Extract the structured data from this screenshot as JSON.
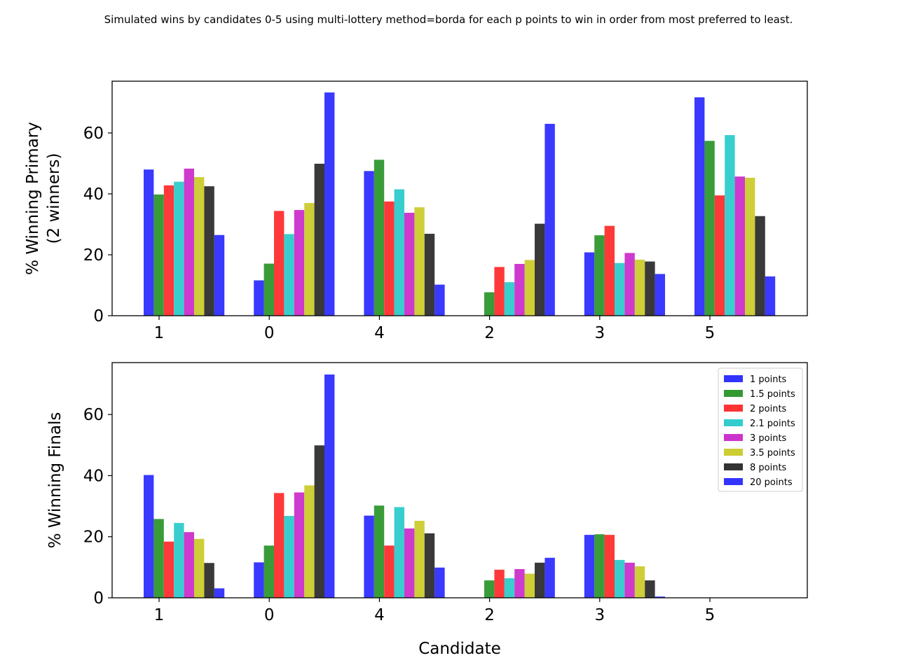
{
  "figure": {
    "title": "Simulated wins by candidates 0-5 using multi-lottery method=borda for each p points to win in order from most preferred to least."
  },
  "series_colors": [
    "#3333ff",
    "#339933",
    "#ff3333",
    "#33cccc",
    "#cc33cc",
    "#cccc33",
    "#333333",
    "#3333ff"
  ],
  "chart_data": [
    {
      "type": "bar",
      "ylabel": "% Winning Primary\n(2 winners)",
      "xlabel": "",
      "ylim": [
        0,
        77
      ],
      "yticks": [
        0,
        20,
        40,
        60
      ],
      "grid": false,
      "categories": [
        "1",
        "0",
        "4",
        "2",
        "3",
        "5"
      ],
      "series": [
        {
          "name": "1 points",
          "values": [
            48.0,
            11.6,
            47.5,
            0.0,
            20.8,
            71.7
          ]
        },
        {
          "name": "1.5 points",
          "values": [
            39.8,
            17.1,
            51.2,
            7.7,
            26.4,
            57.4
          ]
        },
        {
          "name": "2 points",
          "values": [
            42.8,
            34.4,
            37.5,
            16.0,
            29.5,
            39.5
          ]
        },
        {
          "name": "2.1 points",
          "values": [
            44.0,
            26.8,
            41.5,
            11.0,
            17.3,
            59.3
          ]
        },
        {
          "name": "3 points",
          "values": [
            48.3,
            34.7,
            33.8,
            17.0,
            20.6,
            45.7
          ]
        },
        {
          "name": "3.5 points",
          "values": [
            45.5,
            37.0,
            35.6,
            18.3,
            18.4,
            45.3
          ]
        },
        {
          "name": "8 points",
          "values": [
            42.5,
            49.9,
            26.9,
            30.2,
            17.8,
            32.7
          ]
        },
        {
          "name": "20 points",
          "values": [
            26.5,
            73.3,
            10.2,
            63.0,
            13.7,
            12.9
          ]
        }
      ]
    },
    {
      "type": "bar",
      "ylabel": "% Winning Finals",
      "xlabel": "Candidate",
      "ylim": [
        0,
        77
      ],
      "yticks": [
        0,
        20,
        40,
        60
      ],
      "grid": false,
      "legend_position": "top-right",
      "categories": [
        "1",
        "0",
        "4",
        "2",
        "3",
        "5"
      ],
      "series": [
        {
          "name": "1 points",
          "values": [
            40.2,
            11.6,
            26.9,
            0.0,
            20.6,
            0.0
          ]
        },
        {
          "name": "1.5 points",
          "values": [
            25.8,
            17.1,
            30.2,
            5.7,
            20.8,
            0.0
          ]
        },
        {
          "name": "2 points",
          "values": [
            18.4,
            34.3,
            17.1,
            9.2,
            20.6,
            0.0
          ]
        },
        {
          "name": "2.1 points",
          "values": [
            24.5,
            26.8,
            29.7,
            6.4,
            12.4,
            0.0
          ]
        },
        {
          "name": "3 points",
          "values": [
            21.5,
            34.5,
            22.7,
            9.4,
            11.5,
            0.0
          ]
        },
        {
          "name": "3.5 points",
          "values": [
            19.3,
            36.8,
            25.2,
            7.9,
            10.3,
            0.0
          ]
        },
        {
          "name": "8 points",
          "values": [
            11.4,
            49.9,
            21.1,
            11.5,
            5.7,
            0.0
          ]
        },
        {
          "name": "20 points",
          "values": [
            3.1,
            73.1,
            9.9,
            13.1,
            0.4,
            0.0
          ]
        }
      ]
    }
  ]
}
